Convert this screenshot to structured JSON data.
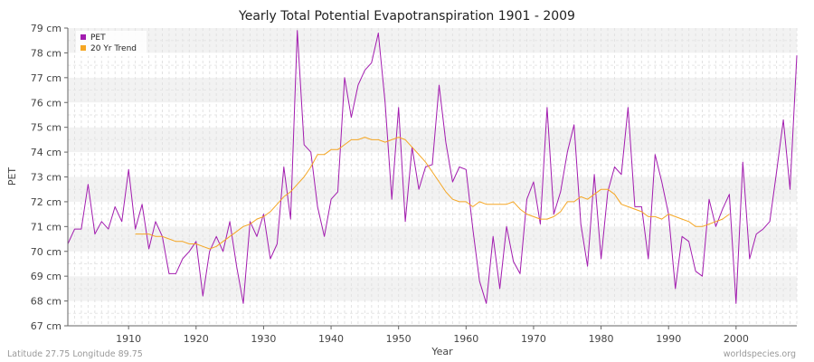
{
  "chart_data": {
    "type": "line",
    "title": "Yearly Total Potential Evapotranspiration 1901 - 2009",
    "xlabel": "Year",
    "ylabel": "PET",
    "xlim": [
      1901,
      2009
    ],
    "ylim": [
      67,
      79
    ],
    "x_ticks": [
      1910,
      1920,
      1930,
      1940,
      1950,
      1960,
      1970,
      1980,
      1990,
      2000
    ],
    "y_ticks": [
      "67 cm",
      "68 cm",
      "69 cm",
      "70 cm",
      "71 cm",
      "72 cm",
      "73 cm",
      "74 cm",
      "75 cm",
      "76 cm",
      "77 cm",
      "78 cm",
      "79 cm"
    ],
    "y_tick_values": [
      67,
      68,
      69,
      70,
      71,
      72,
      73,
      74,
      75,
      76,
      77,
      78,
      79
    ],
    "grid": true,
    "legend_position": "top-left",
    "colors": {
      "pet": "#a21caf",
      "trend": "#f5a623",
      "band": "#f2f2f2"
    },
    "series": [
      {
        "name": "PET",
        "start_year": 1901,
        "values": [
          70.3,
          70.9,
          70.9,
          72.7,
          70.7,
          71.2,
          70.9,
          71.8,
          71.2,
          73.3,
          70.9,
          71.9,
          70.1,
          71.2,
          70.6,
          69.1,
          69.1,
          69.7,
          70.0,
          70.4,
          68.2,
          70.0,
          70.6,
          70.0,
          71.2,
          69.4,
          67.9,
          71.2,
          70.6,
          71.5,
          69.7,
          70.3,
          73.4,
          71.3,
          78.9,
          74.3,
          74.0,
          71.8,
          70.6,
          72.1,
          72.4,
          77.0,
          75.4,
          76.7,
          77.3,
          77.6,
          78.8,
          76.0,
          72.1,
          75.8,
          71.2,
          74.2,
          72.5,
          73.4,
          73.5,
          76.7,
          74.4,
          72.8,
          73.4,
          73.3,
          70.9,
          68.8,
          67.9,
          70.6,
          68.5,
          71.0,
          69.6,
          69.1,
          72.1,
          72.8,
          71.1,
          75.8,
          71.5,
          72.4,
          74.0,
          75.1,
          71.1,
          69.4,
          73.1,
          69.7,
          72.4,
          73.4,
          73.1,
          75.8,
          71.8,
          71.8,
          69.7,
          73.9,
          72.8,
          71.5,
          68.5,
          70.6,
          70.4,
          69.2,
          69.0,
          72.1,
          71.0,
          71.7,
          72.3,
          67.9,
          73.6,
          69.7,
          70.7,
          70.9,
          71.2,
          73.2,
          75.3,
          72.5,
          77.9
        ]
      },
      {
        "name": "20 Yr Trend",
        "start_year": 1911,
        "values": [
          70.7,
          70.7,
          70.7,
          70.6,
          70.6,
          70.5,
          70.4,
          70.4,
          70.3,
          70.3,
          70.2,
          70.1,
          70.2,
          70.4,
          70.6,
          70.8,
          71.0,
          71.1,
          71.3,
          71.4,
          71.6,
          71.9,
          72.2,
          72.4,
          72.7,
          73.0,
          73.4,
          73.9,
          73.9,
          74.1,
          74.1,
          74.3,
          74.5,
          74.5,
          74.6,
          74.5,
          74.5,
          74.4,
          74.5,
          74.6,
          74.5,
          74.2,
          73.9,
          73.6,
          73.2,
          72.8,
          72.4,
          72.1,
          72.0,
          72.0,
          71.8,
          72.0,
          71.9,
          71.9,
          71.9,
          71.9,
          72.0,
          71.7,
          71.5,
          71.4,
          71.3,
          71.3,
          71.4,
          71.6,
          72.0,
          72.0,
          72.2,
          72.1,
          72.3,
          72.5,
          72.5,
          72.3,
          71.9,
          71.8,
          71.7,
          71.6,
          71.4,
          71.4,
          71.3,
          71.5,
          71.4,
          71.3,
          71.2,
          71.0,
          71.0,
          71.1,
          71.2,
          71.3,
          71.5
        ]
      }
    ]
  },
  "footer": {
    "left": "Latitude 27.75 Longitude 89.75",
    "right": "worldspecies.org"
  }
}
